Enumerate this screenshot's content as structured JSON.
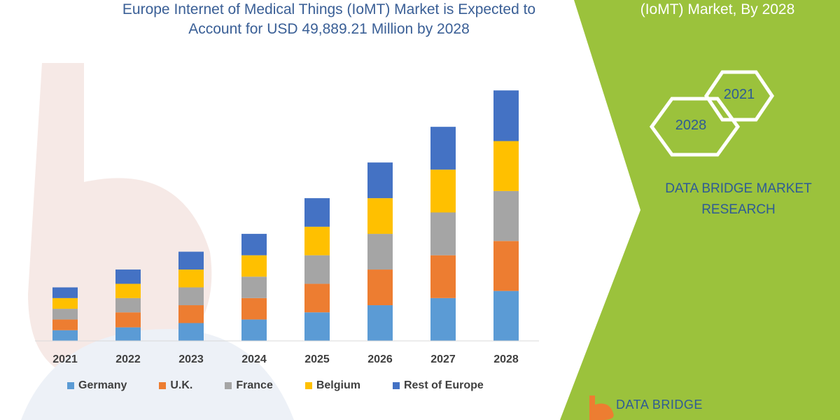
{
  "header": {
    "title_line1": "Europe Internet of Medical Things (IoMT) Market is Expected to",
    "title_line2": "Account for USD 49,889.21 Million by 2028",
    "right_title": "(IoMT) Market, By 2028"
  },
  "badges": {
    "year_top": "2021",
    "year_bottom": "2028"
  },
  "brand": {
    "line1": "DATA BRIDGE MARKET",
    "line2": "RESEARCH",
    "footer": "DATA BRIDGE"
  },
  "colors": {
    "accent_green": "#9bc23c",
    "title_blue": "#3a5f96"
  },
  "chart_data": {
    "type": "bar",
    "stacked": true,
    "categories": [
      "2021",
      "2022",
      "2023",
      "2024",
      "2025",
      "2026",
      "2027",
      "2028"
    ],
    "series": [
      {
        "name": "Germany",
        "color": "#5b9bd5",
        "values": [
          15,
          19,
          25,
          30,
          40,
          50,
          60,
          70
        ]
      },
      {
        "name": "U.K.",
        "color": "#ed7d31",
        "values": [
          15,
          21,
          25,
          30,
          40,
          50,
          60,
          70
        ]
      },
      {
        "name": "France",
        "color": "#a5a5a5",
        "values": [
          15,
          20,
          25,
          30,
          40,
          50,
          60,
          70
        ]
      },
      {
        "name": "Belgium",
        "color": "#ffc000",
        "values": [
          15,
          20,
          25,
          30,
          40,
          50,
          60,
          70
        ]
      },
      {
        "name": "Rest of Europe",
        "color": "#4472c4",
        "values": [
          15,
          20,
          25,
          30,
          40,
          50,
          60,
          71
        ]
      }
    ],
    "ylim": [
      0,
      360
    ],
    "grid": false,
    "legend": "bottom"
  }
}
